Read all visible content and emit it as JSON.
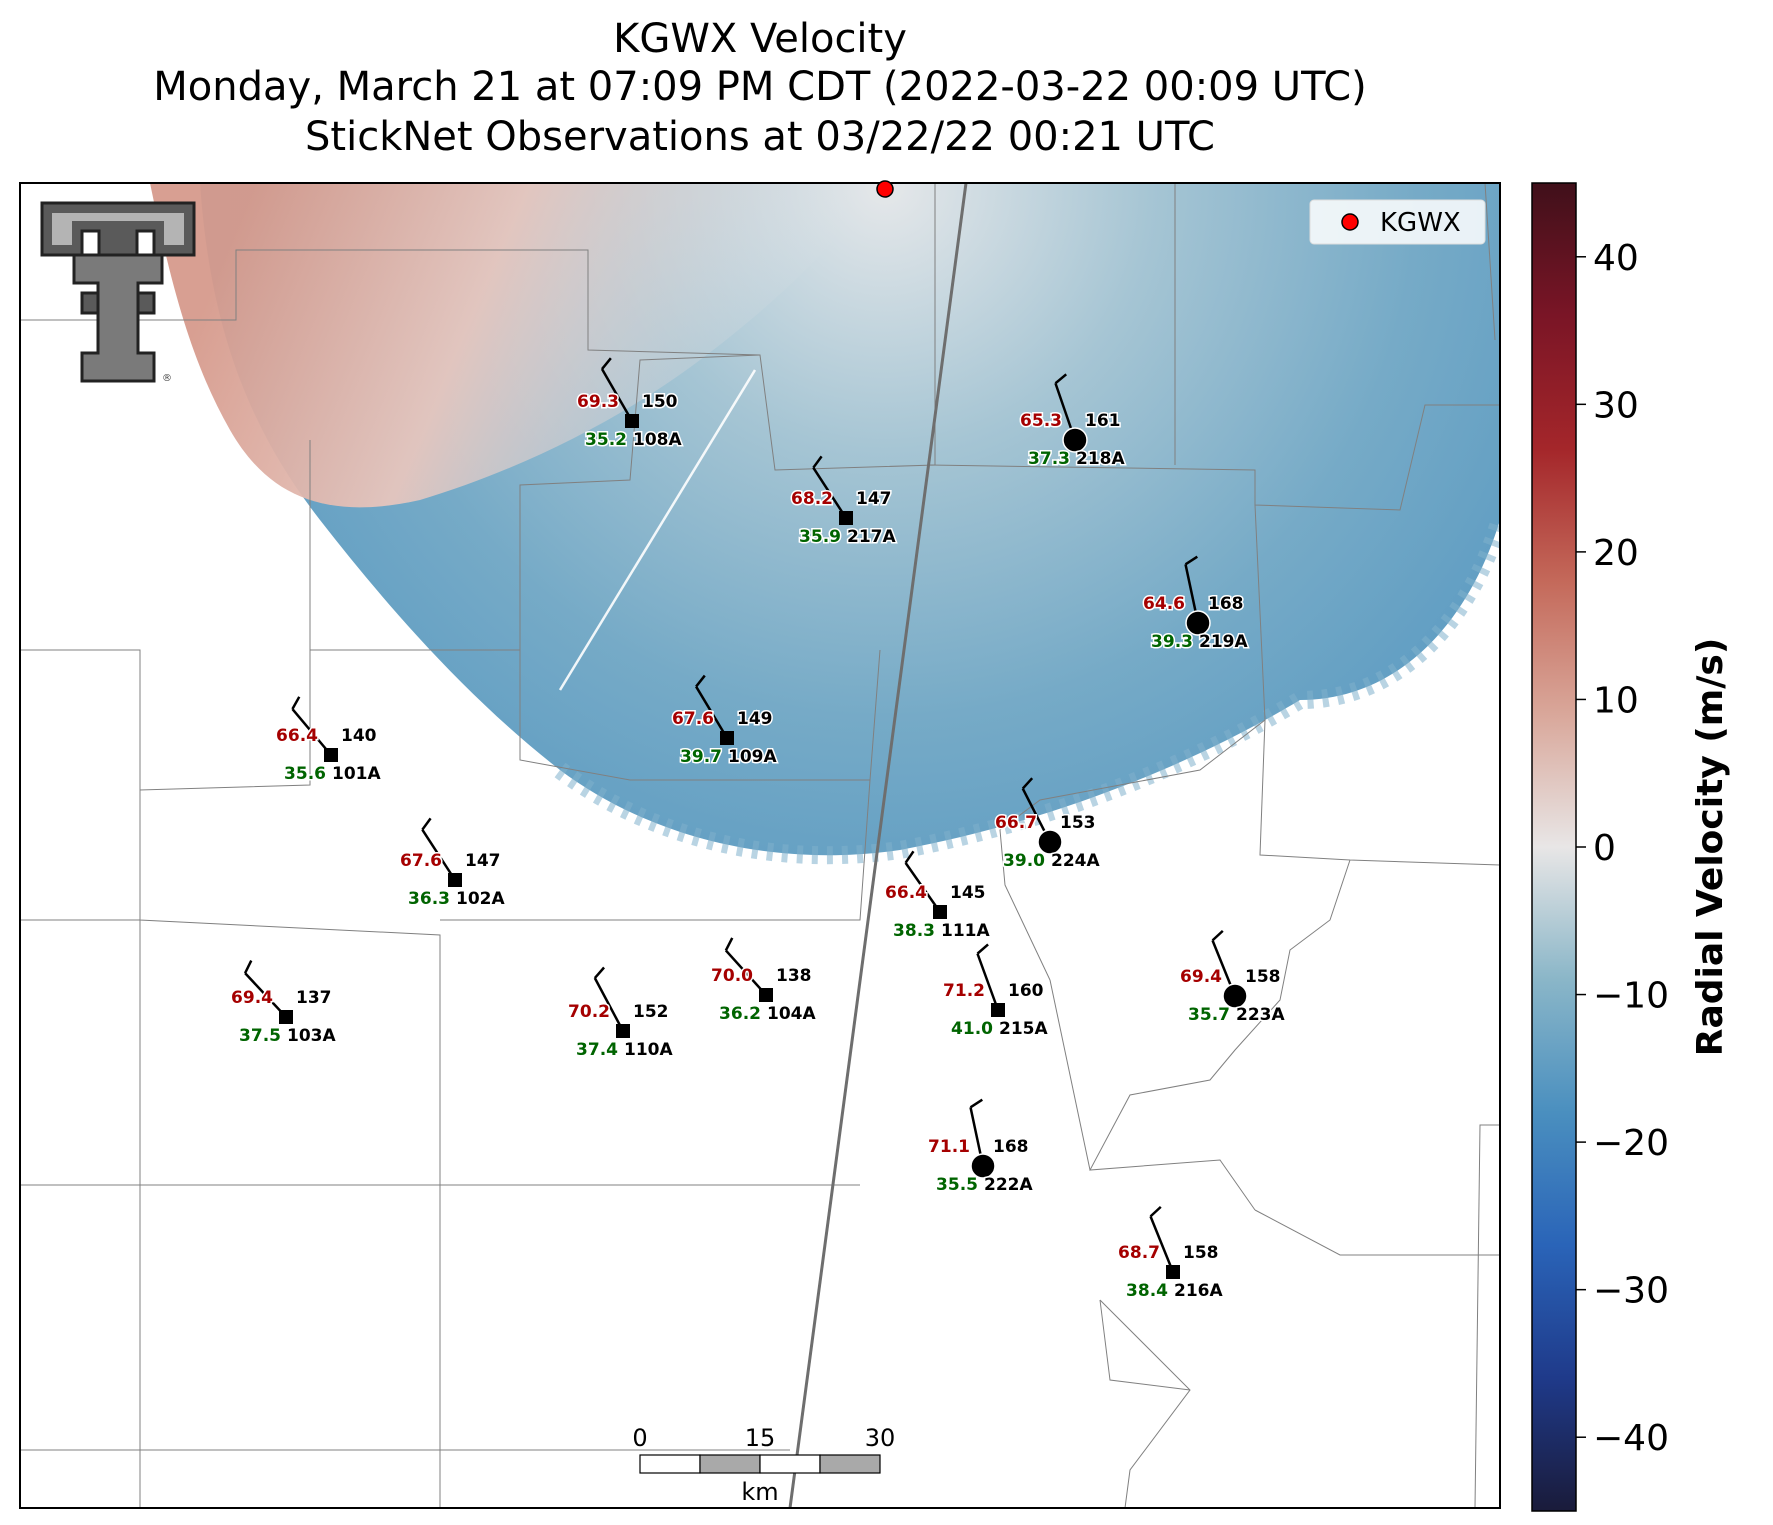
{
  "title": {
    "line1": "KGWX Velocity",
    "line2": "Monday, March 21 at 07:09 PM CDT (2022-03-22 00:09 UTC)",
    "line3": "StickNet Observations at 03/22/22 00:21 UTC"
  },
  "legend": {
    "label": "KGWX",
    "marker_color": "#ff0000"
  },
  "colorbar": {
    "label": "Radial Velocity (m/s)",
    "range": [
      -45,
      45
    ],
    "ticks": [
      "40",
      "30",
      "20",
      "10",
      "0",
      "−10",
      "−20",
      "−30",
      "−40"
    ],
    "tick_values": [
      40,
      30,
      20,
      10,
      0,
      -10,
      -20,
      -30,
      -40
    ],
    "colors": [
      "#1a1b3a",
      "#1f3a8a",
      "#2a64b8",
      "#4a8fbf",
      "#8ab6c8",
      "#e8e6e6",
      "#d9a79a",
      "#c4695a",
      "#a4262a",
      "#7a1526",
      "#40101a"
    ]
  },
  "scale_bar": {
    "labels": [
      "0",
      "15",
      "30"
    ],
    "unit": "km"
  },
  "logo": {
    "name": "texas-tech-double-t",
    "registered": "®"
  },
  "stations": [
    {
      "id": "108A",
      "temp": "69.3",
      "dew": "35.2",
      "dir": "150",
      "marker": "square",
      "lon": 0,
      "lat": 0
    },
    {
      "id": "218A",
      "temp": "65.3",
      "dew": "37.3",
      "dir": "161",
      "marker": "circle"
    },
    {
      "id": "217A",
      "temp": "68.2",
      "dew": "35.9",
      "dir": "147",
      "marker": "square"
    },
    {
      "id": "219A",
      "temp": "64.6",
      "dew": "39.3",
      "dir": "168",
      "marker": "circle"
    },
    {
      "id": "101A",
      "temp": "66.4",
      "dew": "35.6",
      "dir": "140",
      "marker": "square"
    },
    {
      "id": "109A",
      "temp": "67.6",
      "dew": "39.7",
      "dir": "149",
      "marker": "square"
    },
    {
      "id": "224A",
      "temp": "66.7",
      "dew": "39.0",
      "dir": "153",
      "marker": "circle"
    },
    {
      "id": "102A",
      "temp": "67.6",
      "dew": "36.3",
      "dir": "147",
      "marker": "square"
    },
    {
      "id": "111A",
      "temp": "66.4",
      "dew": "38.3",
      "dir": "145",
      "marker": "square"
    },
    {
      "id": "103A",
      "temp": "69.4",
      "dew": "37.5",
      "dir": "137",
      "marker": "square"
    },
    {
      "id": "104A",
      "temp": "70.0",
      "dew": "36.2",
      "dir": "138",
      "marker": "square"
    },
    {
      "id": "110A",
      "temp": "70.2",
      "dew": "37.4",
      "dir": "152",
      "marker": "square"
    },
    {
      "id": "215A",
      "temp": "71.2",
      "dew": "41.0",
      "dir": "160",
      "marker": "square"
    },
    {
      "id": "223A",
      "temp": "69.4",
      "dew": "35.7",
      "dir": "158",
      "marker": "circle"
    },
    {
      "id": "222A",
      "temp": "71.1",
      "dew": "35.5",
      "dir": "168",
      "marker": "circle"
    },
    {
      "id": "216A",
      "temp": "68.7",
      "dew": "38.4",
      "dir": "158",
      "marker": "square"
    }
  ],
  "colors": {
    "temp": "#a50000",
    "dew": "#006400",
    "dir": "#000000"
  }
}
